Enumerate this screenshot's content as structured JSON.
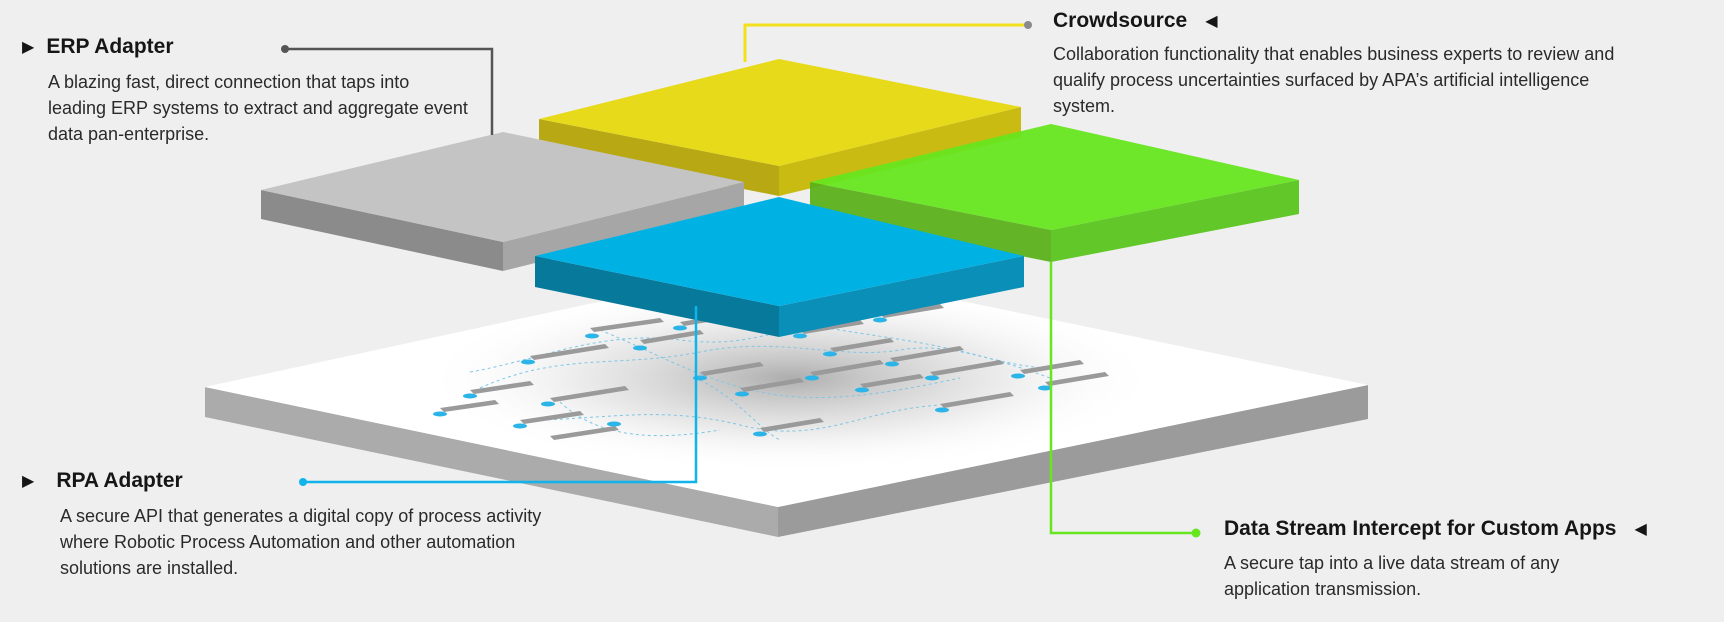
{
  "colors": {
    "background": "#efefef",
    "erp_layer": "#c4c4c4",
    "crowdsource_layer": "#e6da1a",
    "data_stream_layer": "#66e61e",
    "rpa_layer": "#00b2e4",
    "base_platform": "#ffffff",
    "flow_nodes": "#2ab4e8"
  },
  "callouts": {
    "erp": {
      "marker": "▶",
      "title": "ERP Adapter",
      "description": "A blazing fast, direct connection that taps into leading ERP systems to extract and aggregate event data pan-enterprise."
    },
    "rpa": {
      "marker": "▶",
      "title": "RPA Adapter",
      "description": "A secure API that generates a digital copy of process activity where Robotic Process Automation and other automation solutions are installed."
    },
    "crowdsource": {
      "marker": "◀",
      "title": "Crowdsource",
      "description": "Collaboration functionality that enables business experts to review and qualify process uncertainties surfaced by APA’s artificial intelligence system."
    },
    "data_stream": {
      "marker": "◀",
      "title": "Data Stream Intercept for Custom Apps",
      "description": "A secure tap into a live data stream of any application transmission."
    }
  }
}
